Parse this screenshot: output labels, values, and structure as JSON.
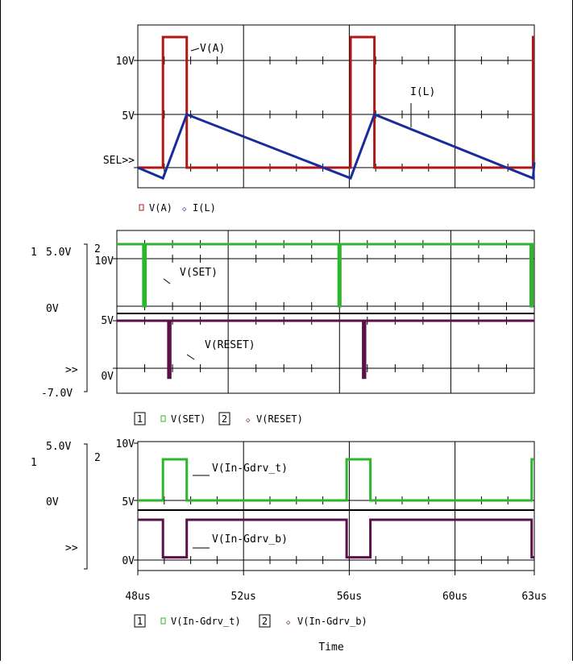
{
  "chart_data": [
    {
      "type": "line",
      "xlim": [
        48,
        63
      ],
      "ytick_labels": [
        "10V",
        "5V",
        "SEL>>"
      ],
      "legend": [
        "V(A)",
        "I(L)"
      ],
      "colors": {
        "V(A)": "#b01818",
        "I(L)": "#1a2c9a"
      },
      "series": [
        {
          "name": "V(A)",
          "x": [
            48,
            48.95,
            48.95,
            49.85,
            49.85,
            56.05,
            56.05,
            56.95,
            56.95,
            62.95,
            62.95,
            63
          ],
          "y": [
            0,
            0,
            12,
            12,
            0,
            0,
            12,
            12,
            0,
            0,
            12,
            12
          ]
        },
        {
          "name": "I(L)",
          "x": [
            48,
            48.95,
            49.85,
            56.05,
            56.95,
            62.95,
            63
          ],
          "y": [
            0,
            -1,
            5,
            -1,
            5,
            -1,
            0.5
          ]
        }
      ],
      "annotations": [
        "V(A)",
        "I(L)"
      ]
    },
    {
      "type": "line",
      "xlim": [
        48,
        63
      ],
      "left_labels": [
        "1",
        "5.0V",
        "0V",
        ">>",
        "-7.0V"
      ],
      "plot_number": "2",
      "upper_ticks": [
        "10V"
      ],
      "lower_ticks": [
        "5V",
        "0V"
      ],
      "legend_index": [
        "1",
        "2"
      ],
      "legend": [
        "V(SET)",
        "V(RESET)"
      ],
      "colors": {
        "V(SET)": "#2db52d",
        "V(RESET)": "#5a1048"
      },
      "series": [
        {
          "name": "V(SET)",
          "x": [
            48,
            48.95,
            48.95,
            49.03,
            49.03,
            55.97,
            55.97,
            56.03,
            56.03,
            62.87,
            62.87,
            62.93,
            62.93,
            63
          ],
          "y": [
            11.2,
            11.2,
            0,
            0,
            11.2,
            11.2,
            0,
            0,
            11.2,
            11.2,
            0,
            0,
            11.2,
            11.2
          ]
        },
        {
          "name": "V(RESET)",
          "x": [
            48,
            49.85,
            49.85,
            49.92,
            49.92,
            56.85,
            56.85,
            56.92,
            56.92,
            63
          ],
          "y": [
            5,
            5,
            -1,
            -1,
            5,
            5,
            -1,
            -1,
            5,
            5
          ]
        }
      ],
      "annotations": [
        "V(SET)",
        "V(RESET)"
      ]
    },
    {
      "type": "line",
      "xlim": [
        48,
        63
      ],
      "left_labels": [
        "1",
        "5.0V",
        "0V",
        ">>"
      ],
      "plot_number": "2",
      "upper_ticks": [
        "10V"
      ],
      "lower_ticks": [
        "5V",
        "0V"
      ],
      "x_ticks": [
        48,
        52,
        56,
        60,
        63
      ],
      "x_tick_labels": [
        "48us",
        "52us",
        "56us",
        "60us",
        "63us"
      ],
      "xlabel": "Time",
      "legend_index": [
        "1",
        "2"
      ],
      "legend": [
        "V(In-Gdrv_t)",
        "V(In-Gdrv_b)"
      ],
      "colors": {
        "V(In-Gdrv_t)": "#2db52d",
        "V(In-Gdrv_b)": "#5a1048"
      },
      "series": [
        {
          "name": "V(In-Gdrv_t)",
          "x": [
            48,
            48.95,
            48.95,
            49.85,
            49.85,
            55.9,
            55.9,
            56.8,
            56.8,
            62.9,
            62.9,
            63
          ],
          "y": [
            5,
            5,
            9.9,
            9.9,
            5,
            5,
            9.9,
            9.9,
            5,
            5,
            9.9,
            9.9
          ]
        },
        {
          "name": "V(In-Gdrv_b)",
          "x": [
            48,
            48.95,
            48.95,
            49.85,
            49.85,
            55.9,
            55.9,
            56.8,
            56.8,
            62.9,
            62.9,
            63
          ],
          "y": [
            3.7,
            3.7,
            0.25,
            0.25,
            3.7,
            3.7,
            0.25,
            0.25,
            3.7,
            3.7,
            0.25,
            0.25
          ]
        }
      ],
      "annotations": [
        "V(In-Gdrv_t)",
        "V(In-Gdrv_b)"
      ]
    }
  ]
}
